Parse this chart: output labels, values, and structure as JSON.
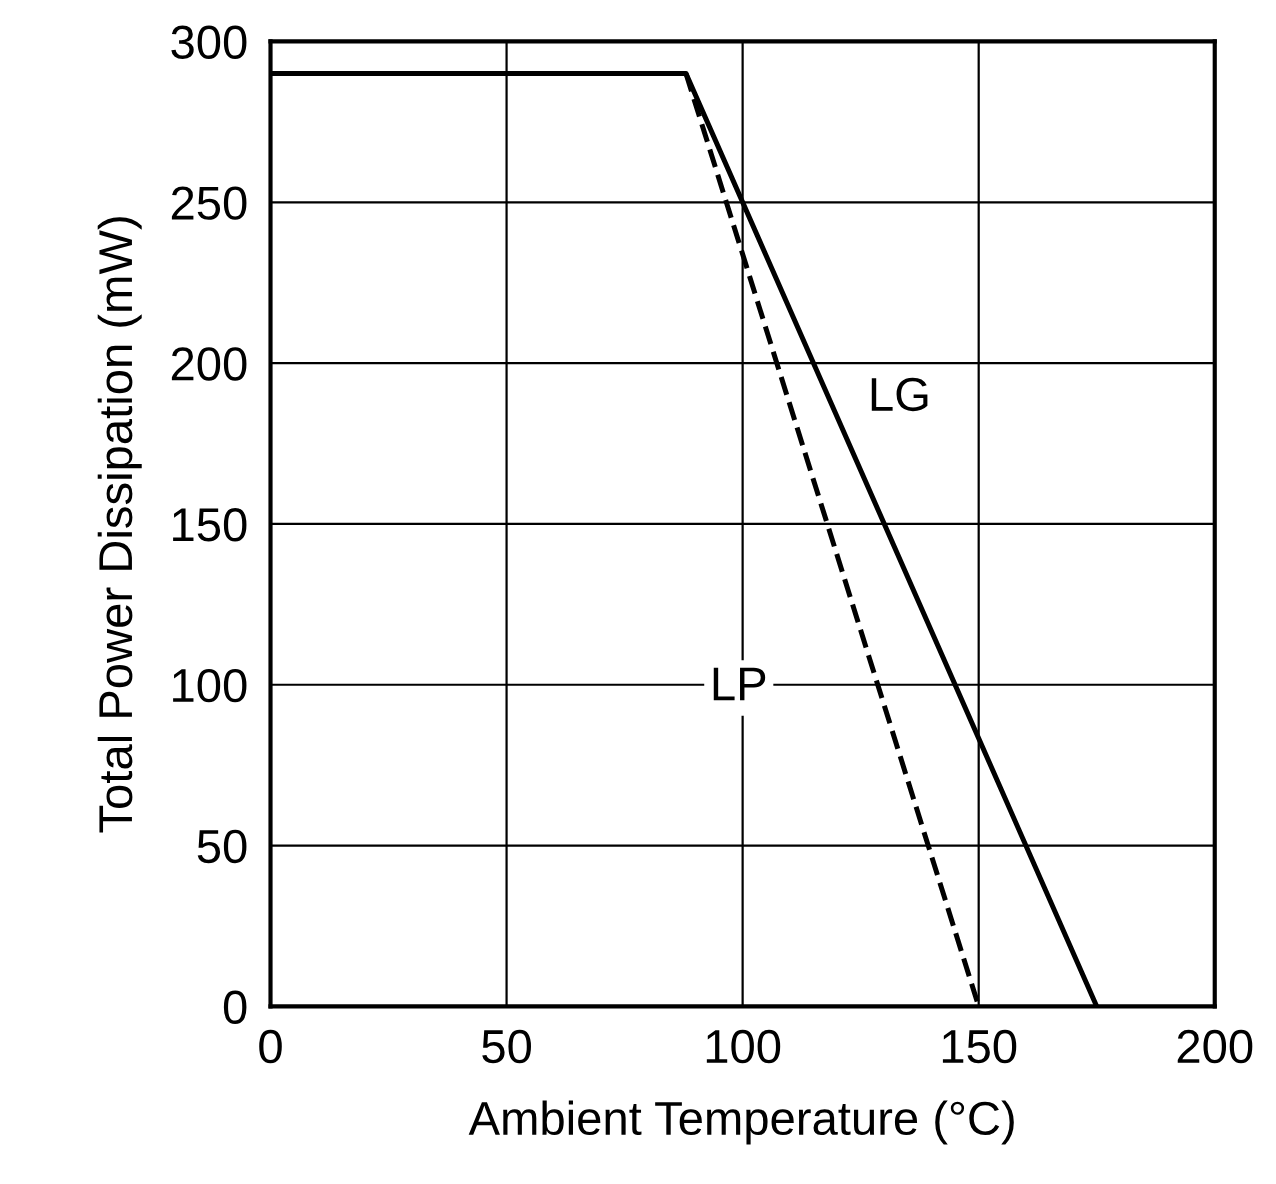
{
  "chart_data": {
    "type": "line",
    "xlabel": "Ambient Temperature (°C)",
    "ylabel": "Total Power Dissipation (mW)",
    "series": [
      {
        "name": "LG",
        "color": "#000000",
        "line_style": "solid",
        "x": [
          0,
          88,
          175
        ],
        "values": [
          290,
          290,
          0
        ]
      },
      {
        "name": "LP",
        "color": "#000000",
        "line_style": "dashed",
        "x": [
          88,
          150
        ],
        "values": [
          290,
          0
        ]
      }
    ],
    "xlim": [
      0,
      200
    ],
    "ylim": [
      0,
      300
    ],
    "xticks": [
      0,
      50,
      100,
      150,
      200
    ],
    "yticks": [
      0,
      50,
      100,
      150,
      200,
      250,
      300
    ],
    "grid": true,
    "legend": false,
    "marker": "none"
  }
}
